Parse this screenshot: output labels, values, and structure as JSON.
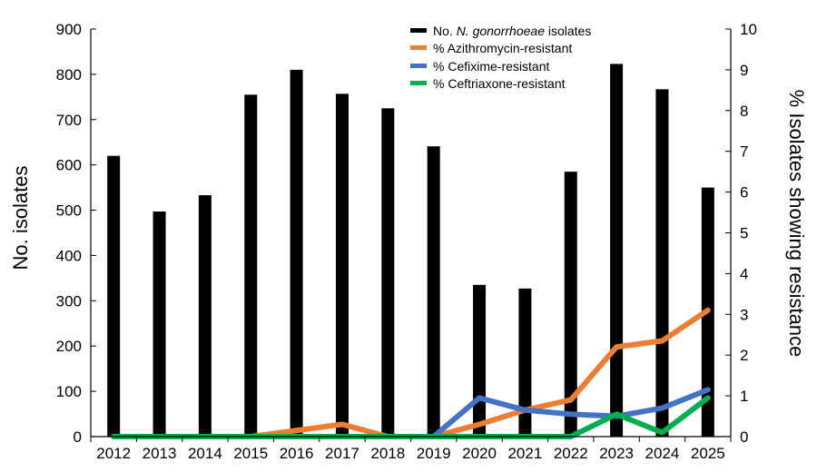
{
  "chart_data": {
    "type": "bar",
    "categories": [
      "2012",
      "2013",
      "2014",
      "2015",
      "2016",
      "2017",
      "2018",
      "2019",
      "2020",
      "2021",
      "2022",
      "2023",
      "2024",
      "2025"
    ],
    "ylabel": "No. isolates",
    "y2label": "% Isolates showing resistance",
    "ylim": [
      0,
      900
    ],
    "y2lim": [
      0,
      10
    ],
    "y_ticks": [
      "0",
      "100",
      "200",
      "300",
      "400",
      "500",
      "600",
      "700",
      "800",
      "900"
    ],
    "y2_ticks": [
      "0",
      "1",
      "2",
      "3",
      "4",
      "5",
      "6",
      "7",
      "8",
      "9",
      "10"
    ],
    "grid": false,
    "legend_position": "top-right",
    "legend": {
      "bar_prefix": "No. ",
      "bar_italic": "N. gonorrhoeae",
      "bar_suffix": " isolates"
    },
    "series": [
      {
        "type": "bar",
        "axis": "left",
        "color": "#000000",
        "values": [
          620,
          497,
          533,
          755,
          810,
          757,
          725,
          641,
          335,
          327,
          585,
          823,
          767,
          550
        ]
      },
      {
        "name": "% Azithromycin-resistant",
        "type": "line",
        "axis": "right",
        "color": "#ED7D31",
        "values": [
          0,
          0,
          0,
          0,
          0.15,
          0.3,
          0,
          0,
          0.3,
          0.65,
          0.9,
          2.2,
          2.35,
          3.1
        ]
      },
      {
        "name": "% Cefixime-resistant",
        "type": "line",
        "axis": "right",
        "color": "#4472C4",
        "values": [
          null,
          null,
          null,
          null,
          null,
          null,
          null,
          0,
          0.95,
          0.65,
          0.55,
          0.5,
          0.7,
          1.15
        ]
      },
      {
        "name": "% Ceftriaxone-resistant",
        "type": "line",
        "axis": "right",
        "color": "#00B050",
        "values": [
          0,
          0,
          0,
          0,
          0,
          0,
          0,
          0,
          0,
          0,
          0,
          0.55,
          0.1,
          0.95
        ]
      }
    ]
  }
}
